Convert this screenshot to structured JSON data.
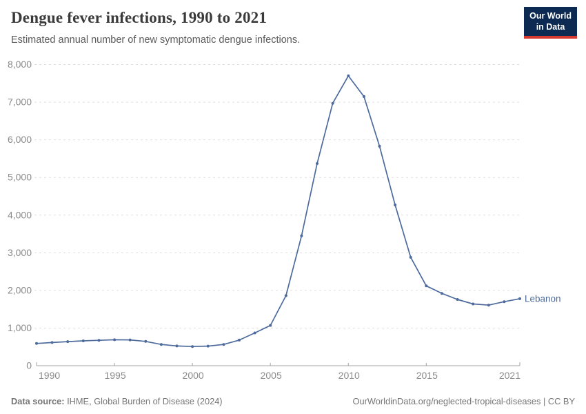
{
  "header": {
    "title": "Dengue fever infections, 1990 to 2021",
    "subtitle": "Estimated annual number of new symptomatic dengue infections.",
    "logo_line1": "Our World",
    "logo_line2": "in Data"
  },
  "footer": {
    "source_label": "Data source:",
    "source_text": "IHME, Global Burden of Disease (2024)",
    "link_text": "OurWorldinData.org/neglected-tropical-diseases | CC BY"
  },
  "colors": {
    "accent_line": "#4c6a9c",
    "gridline": "#dedede",
    "axis_text": "#8a8a8a",
    "axis_line": "#a3a3a3",
    "logo_navy": "#0d2b52",
    "logo_red": "#d6392e",
    "title_text": "#3a3a3a",
    "subtitle_text": "#595959",
    "footer_text": "#757575"
  },
  "chart_data": {
    "type": "line",
    "title": "Dengue fever infections, 1990 to 2021",
    "subtitle": "Estimated annual number of new symptomatic dengue infections.",
    "xlabel": "",
    "ylabel": "",
    "xlim": [
      1990,
      2021
    ],
    "ylim": [
      0,
      8000
    ],
    "grid": "horizontal-dashed",
    "legend_position": "end-of-line-label",
    "x": [
      1990,
      1991,
      1992,
      1993,
      1994,
      1995,
      1996,
      1997,
      1998,
      1999,
      2000,
      2001,
      2002,
      2003,
      2004,
      2005,
      2006,
      2007,
      2008,
      2009,
      2010,
      2011,
      2012,
      2013,
      2014,
      2015,
      2016,
      2017,
      2018,
      2019,
      2020,
      2021
    ],
    "series": [
      {
        "name": "Lebanon",
        "color": "#4c6a9c",
        "values": [
          590,
          615,
          640,
          660,
          675,
          690,
          685,
          645,
          565,
          525,
          510,
          520,
          565,
          680,
          870,
          1070,
          1860,
          3450,
          5370,
          6970,
          7700,
          7150,
          5830,
          4270,
          2880,
          2120,
          1920,
          1760,
          1640,
          1610,
          1700,
          1780
        ]
      }
    ],
    "yticks": [
      {
        "v": 0,
        "label": "0"
      },
      {
        "v": 1000,
        "label": "1,000"
      },
      {
        "v": 2000,
        "label": "2,000"
      },
      {
        "v": 3000,
        "label": "3,000"
      },
      {
        "v": 4000,
        "label": "4,000"
      },
      {
        "v": 5000,
        "label": "5,000"
      },
      {
        "v": 6000,
        "label": "6,000"
      },
      {
        "v": 7000,
        "label": "7,000"
      },
      {
        "v": 8000,
        "label": "8,000"
      }
    ],
    "xticks": [
      {
        "v": 1990,
        "label": "1990"
      },
      {
        "v": 1995,
        "label": "1995"
      },
      {
        "v": 2000,
        "label": "2000"
      },
      {
        "v": 2005,
        "label": "2005"
      },
      {
        "v": 2010,
        "label": "2010"
      },
      {
        "v": 2015,
        "label": "2015"
      },
      {
        "v": 2021,
        "label": "2021"
      }
    ]
  }
}
